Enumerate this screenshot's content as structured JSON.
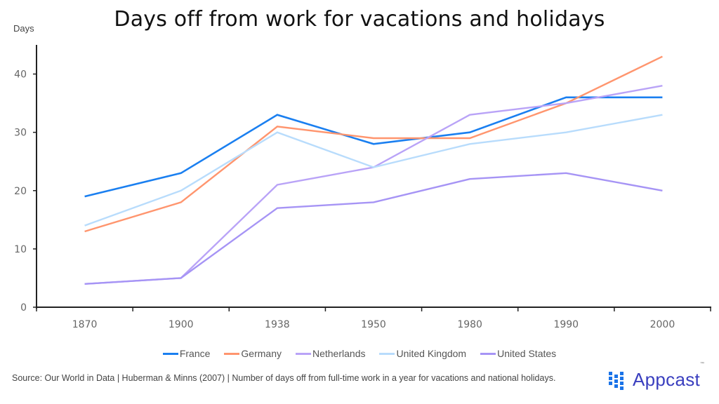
{
  "title": "Days off from work for vacations and holidays",
  "footer": "Source: Our World in Data  |  Huberman & Minns  (2007)  |  Number of days off from full-time work in a year for vacations and national holidays.",
  "logo": {
    "text": "Appcast",
    "tm": "™",
    "icon": "appcast-dot-grid-icon"
  },
  "colors": {
    "France": "#1a7ff0",
    "Germany": "#ff956e",
    "Netherlands": "#b9a3f7",
    "United Kingdom": "#b8dcfc",
    "United States": "#a694f5"
  },
  "chart_data": {
    "type": "line",
    "title": "Days off from work for vacations and holidays",
    "xlabel": "",
    "ylabel": "Days",
    "categories": [
      "1870",
      "1900",
      "1938",
      "1950",
      "1980",
      "1990",
      "2000"
    ],
    "ylim": [
      0,
      45
    ],
    "yticks": [
      0,
      10,
      20,
      30,
      40
    ],
    "grid": false,
    "legend_position": "bottom",
    "series": [
      {
        "name": "France",
        "values": [
          19,
          23,
          33,
          28,
          30,
          36,
          36
        ]
      },
      {
        "name": "Germany",
        "values": [
          13,
          18,
          31,
          29,
          29,
          35,
          43
        ]
      },
      {
        "name": "Netherlands",
        "values": [
          4,
          5,
          21,
          24,
          33,
          35,
          38
        ]
      },
      {
        "name": "United Kingdom",
        "values": [
          14,
          20,
          30,
          24,
          28,
          30,
          33
        ]
      },
      {
        "name": "United States",
        "values": [
          4,
          5,
          17,
          18,
          22,
          23,
          20
        ]
      }
    ]
  }
}
